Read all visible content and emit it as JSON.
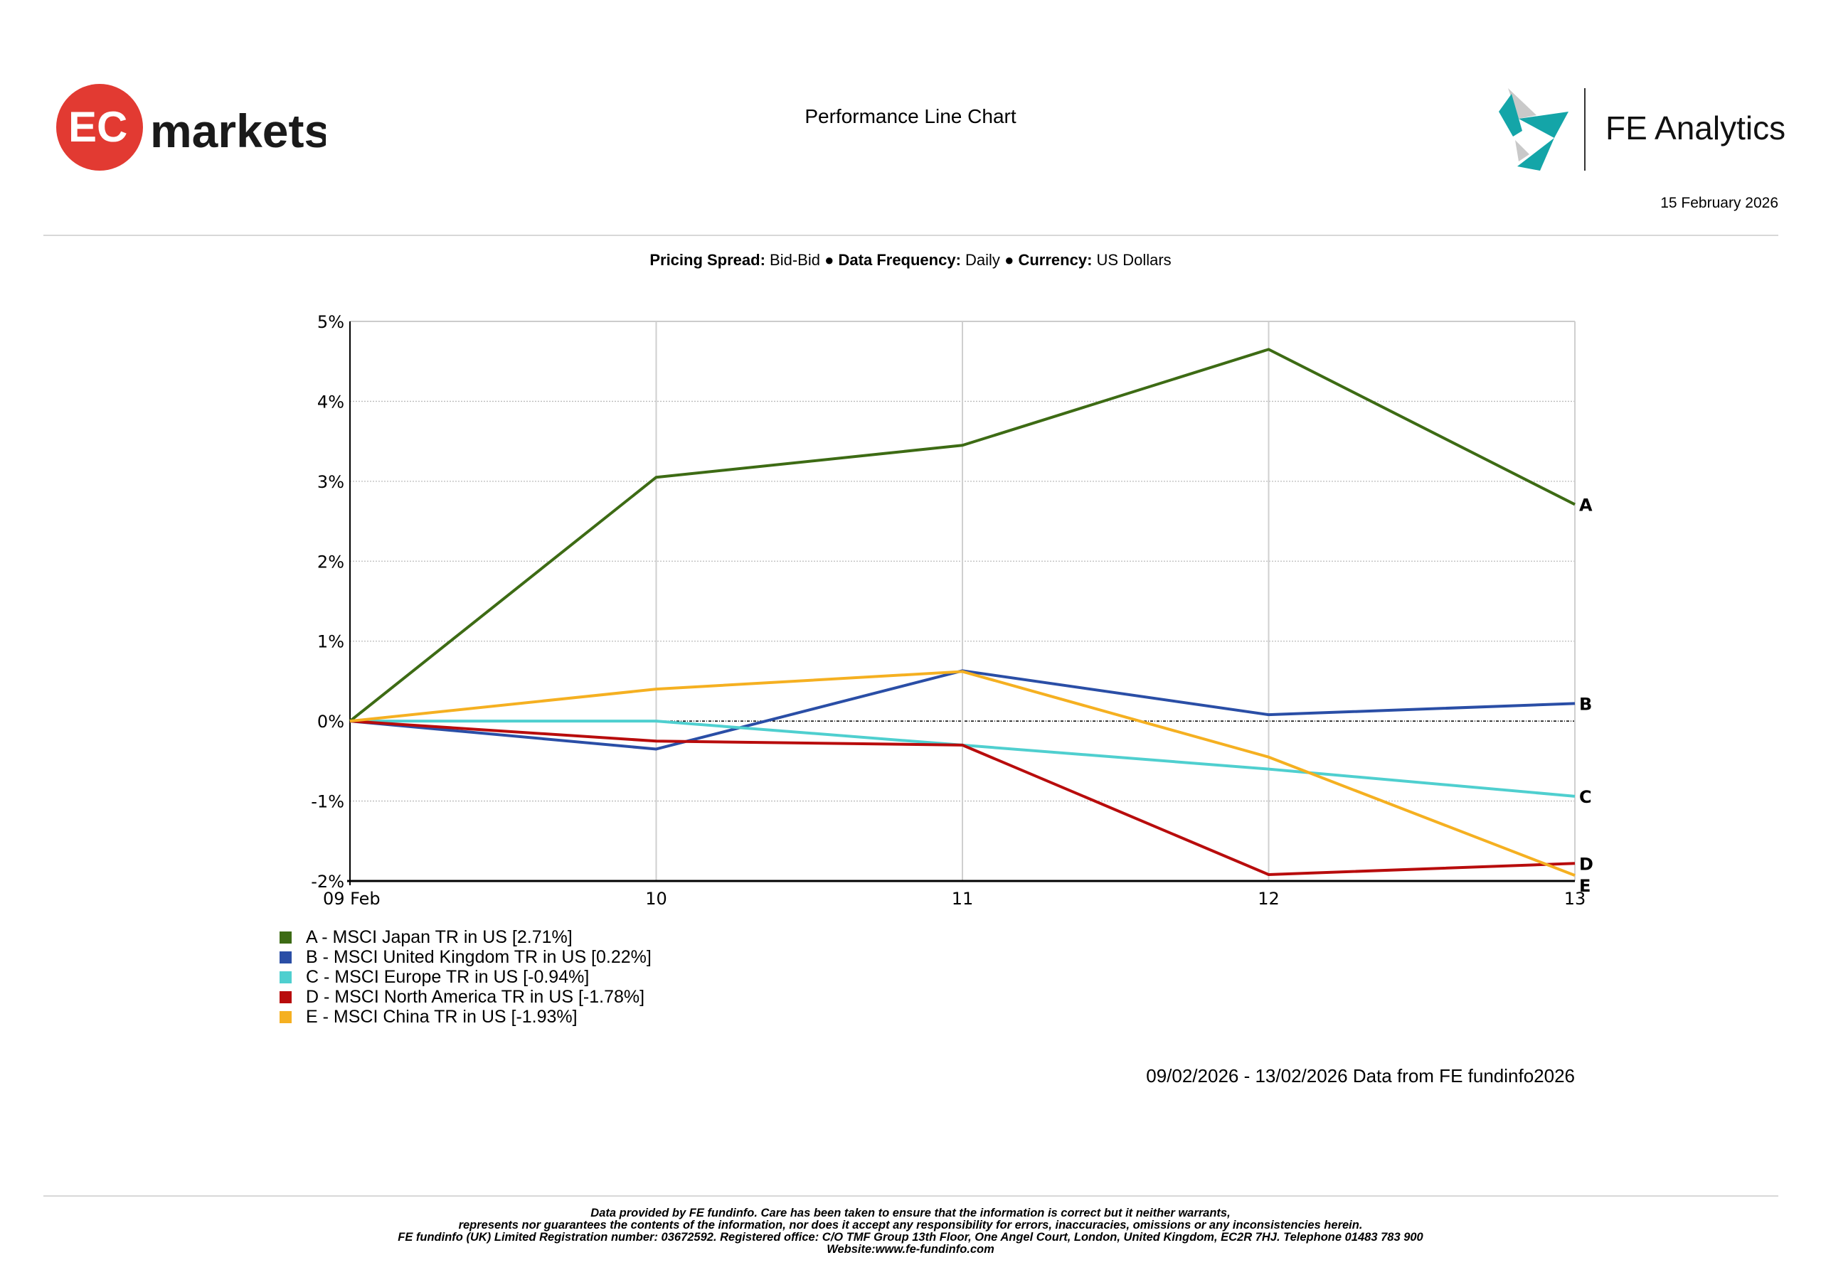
{
  "header": {
    "brand_logo": "markets",
    "brand_logo_mark": "EC",
    "title": "Performance Line Chart",
    "partner_logo": "FE Analytics",
    "date": "15 February 2026"
  },
  "settings": {
    "pricing_spread_label": "Pricing Spread:",
    "pricing_spread_value": "Bid-Bid",
    "frequency_label": "Data Frequency:",
    "frequency_value": "Daily",
    "currency_label": "Currency:",
    "currency_value": "US Dollars",
    "separator": "●"
  },
  "chart_data": {
    "type": "line",
    "title": "Performance Line Chart",
    "xlabel": "",
    "ylabel": "",
    "x": [
      "09 Feb",
      "10",
      "11",
      "12",
      "13"
    ],
    "ylim": [
      -2,
      5
    ],
    "yticks": [
      5,
      4,
      3,
      2,
      1,
      0,
      -1,
      -2
    ],
    "ytick_labels": [
      "5%",
      "4%",
      "3%",
      "2%",
      "1%",
      "0%",
      "-1%",
      "-2%"
    ],
    "grid": true,
    "legend_position": "bottom-left",
    "series": [
      {
        "key": "A",
        "name": "A - MSCI Japan TR in US [2.71%]",
        "color": "#3d6b14",
        "values": [
          0,
          3.05,
          3.45,
          4.65,
          2.71
        ]
      },
      {
        "key": "B",
        "name": "B - MSCI United Kingdom TR in US [0.22%]",
        "color": "#2a4ea6",
        "values": [
          0,
          -0.35,
          0.63,
          0.08,
          0.22
        ]
      },
      {
        "key": "C",
        "name": "C - MSCI Europe TR in US [-0.94%]",
        "color": "#4fcfcf",
        "values": [
          0,
          0,
          -0.3,
          -0.6,
          -0.94
        ]
      },
      {
        "key": "D",
        "name": "D - MSCI North America TR in US [-1.78%]",
        "color": "#b80c0c",
        "values": [
          0,
          -0.25,
          -0.3,
          -1.92,
          -1.78
        ]
      },
      {
        "key": "E",
        "name": "E - MSCI China TR in US [-1.93%]",
        "color": "#f5b021",
        "values": [
          0,
          0.4,
          0.62,
          -0.45,
          -1.93
        ]
      }
    ]
  },
  "source_note": "09/02/2026 - 13/02/2026 Data from FE fundinfo2026",
  "footer": {
    "lines": [
      "Data provided by FE fundinfo. Care has been taken to ensure that the information is correct but it neither warrants,",
      "represents nor guarantees the contents of the information, nor does it accept any responsibility for errors, inaccuracies, omissions or any inconsistencies herein.",
      "FE fundinfo (UK) Limited Registration number: 03672592. Registered office: C/O TMF Group 13th Floor, One Angel Court, London, United Kingdom, EC2R 7HJ. Telephone 01483 783 900",
      "Website:www.fe-fundinfo.com"
    ]
  }
}
